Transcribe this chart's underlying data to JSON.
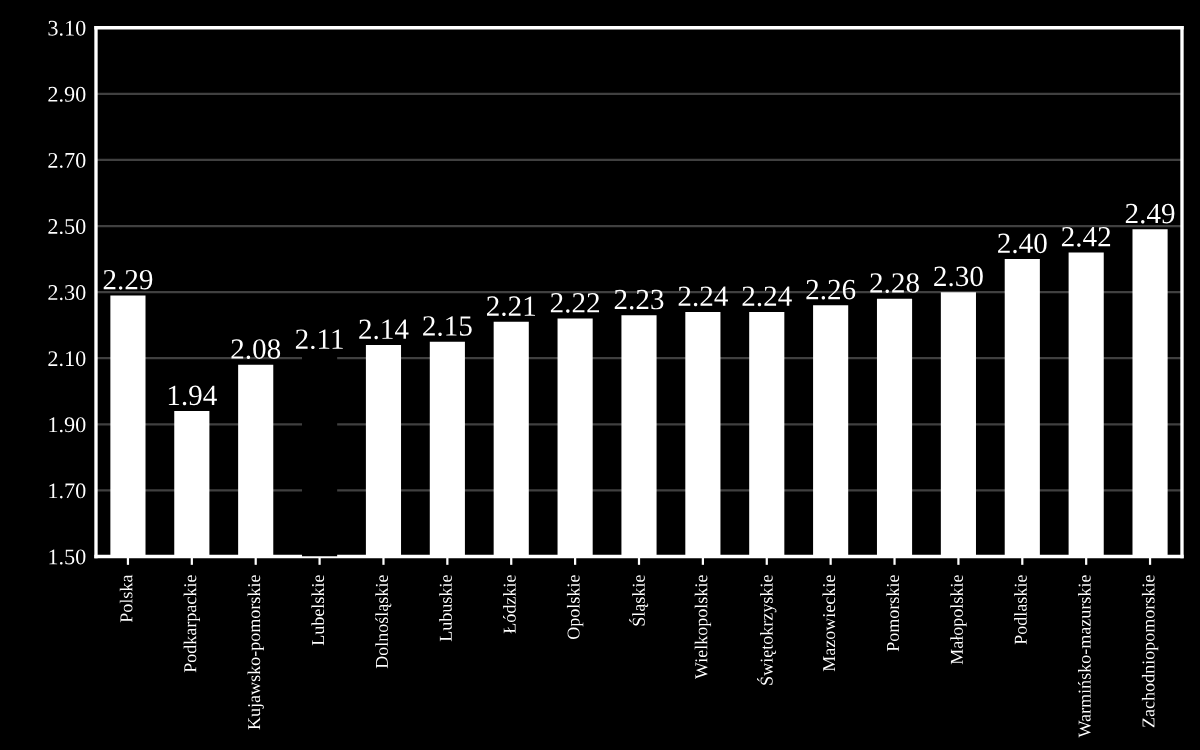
{
  "chart_data": {
    "type": "bar",
    "categories": [
      "Polska",
      "Podkarpackie",
      "Kujawsko-pomorskie",
      "Lubelskie",
      "Dolnośląskie",
      "Lubuskie",
      "Łódzkie",
      "Opolskie",
      "Śląskie",
      "Wielkopolskie",
      "Świętokrzyskie",
      "Mazowieckie",
      "Pomorskie",
      "Małopolskie",
      "Podlaskie",
      "Warmińsko-mazurskie",
      "Zachodniopomorskie"
    ],
    "values": [
      2.29,
      1.94,
      2.08,
      2.11,
      2.14,
      2.15,
      2.21,
      2.22,
      2.23,
      2.24,
      2.24,
      2.26,
      2.28,
      2.3,
      2.4,
      2.42,
      2.49
    ],
    "colors": [
      "#ffffff",
      "#ffffff",
      "#ffffff",
      "#000000",
      "#ffffff",
      "#ffffff",
      "#ffffff",
      "#ffffff",
      "#ffffff",
      "#ffffff",
      "#ffffff",
      "#ffffff",
      "#ffffff",
      "#ffffff",
      "#ffffff",
      "#ffffff",
      "#ffffff"
    ],
    "ylim": [
      1.5,
      3.1
    ],
    "yticks": [
      {
        "value": 1.5,
        "label": "1.50"
      },
      {
        "value": 1.7,
        "label": "1.70"
      },
      {
        "value": 1.9,
        "label": "1.90"
      },
      {
        "value": 2.1,
        "label": "2.10"
      },
      {
        "value": 2.3,
        "label": "2.30"
      },
      {
        "value": 2.5,
        "label": "2.50"
      },
      {
        "value": 2.7,
        "label": "2.70"
      },
      {
        "value": 2.9,
        "label": "2.90"
      },
      {
        "value": 3.1,
        "label": "3.10"
      }
    ],
    "value_labels": [
      "2.29",
      "1.94",
      "2.08",
      "2.11",
      "2.14",
      "2.15",
      "2.21",
      "2.22",
      "2.23",
      "2.24",
      "2.24",
      "2.26",
      "2.28",
      "2.30",
      "2.40",
      "2.42",
      "2.49"
    ],
    "grid": "y",
    "legend": false
  }
}
